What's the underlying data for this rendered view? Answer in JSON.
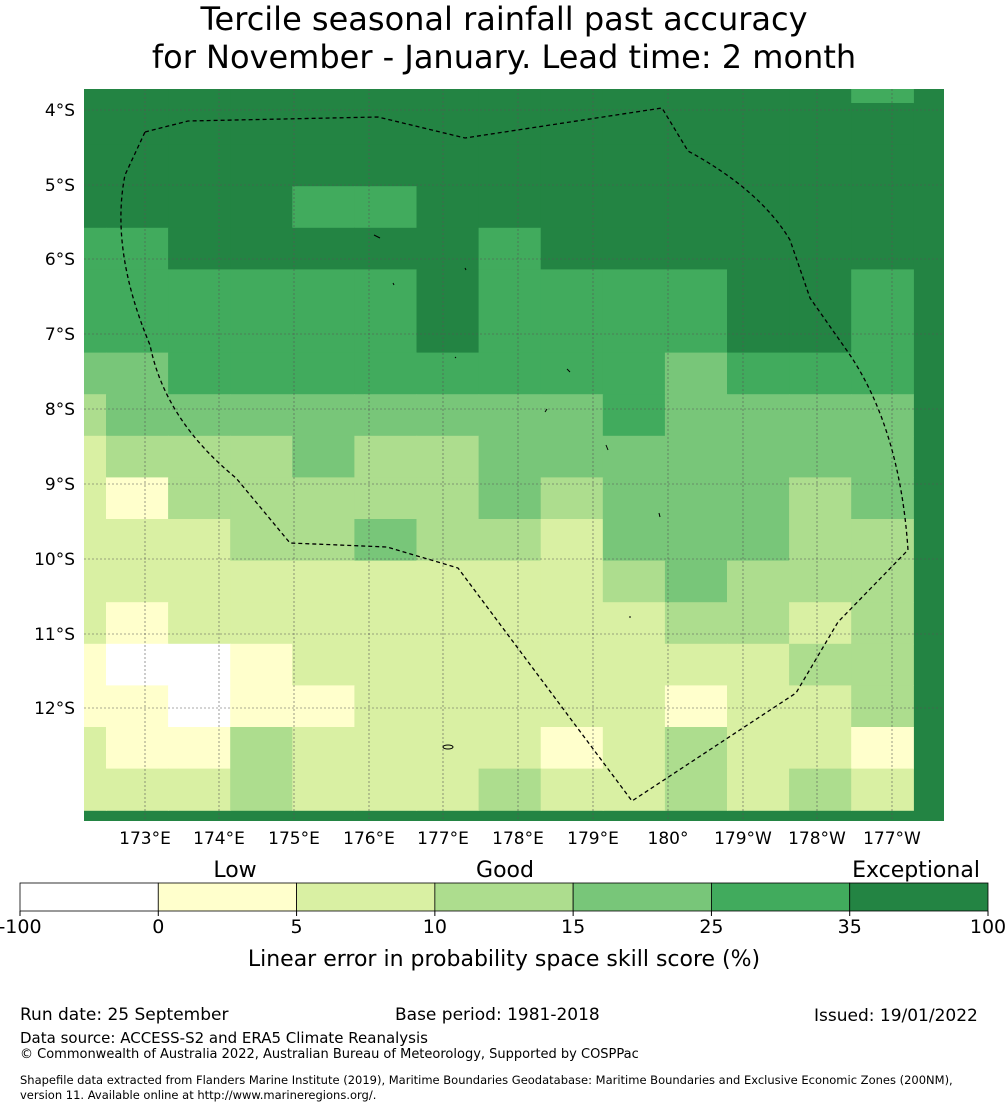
{
  "title_line1": "Tercile seasonal rainfall past accuracy",
  "title_line2": "for November - January. Lead time: 2 month",
  "map": {
    "lat_labels": [
      "4°S",
      "5°S",
      "6°S",
      "7°S",
      "8°S",
      "9°S",
      "10°S",
      "11°S",
      "12°S"
    ],
    "lon_labels": [
      "173°E",
      "174°E",
      "175°E",
      "176°E",
      "177°E",
      "178°E",
      "179°E",
      "180°",
      "179°W",
      "178°W",
      "177°W"
    ],
    "grid_legend_levels": "rows 0-17 cols 0-13; values are class indices 0..6 from colorbar (0:-100..0, 1:0..5, 2:5..10, 3:10..15, 4:15..25, 5:25..35, 6:35..100)",
    "grid": [
      [
        6,
        6,
        6,
        6,
        6,
        6,
        6,
        6,
        6,
        6,
        6,
        6,
        6,
        5
      ],
      [
        6,
        6,
        6,
        6,
        6,
        6,
        6,
        6,
        6,
        6,
        6,
        6,
        6,
        6
      ],
      [
        6,
        6,
        6,
        6,
        6,
        6,
        6,
        6,
        6,
        6,
        6,
        6,
        6,
        6
      ],
      [
        6,
        6,
        6,
        6,
        5,
        5,
        6,
        6,
        6,
        6,
        6,
        6,
        6,
        6
      ],
      [
        5,
        5,
        6,
        6,
        6,
        6,
        6,
        5,
        6,
        6,
        6,
        6,
        6,
        6
      ],
      [
        5,
        5,
        5,
        5,
        5,
        5,
        6,
        5,
        5,
        5,
        5,
        6,
        6,
        5
      ],
      [
        5,
        5,
        5,
        5,
        5,
        5,
        6,
        5,
        5,
        5,
        5,
        6,
        6,
        5
      ],
      [
        4,
        4,
        5,
        5,
        5,
        5,
        5,
        5,
        5,
        5,
        4,
        5,
        5,
        5
      ],
      [
        3,
        4,
        4,
        4,
        4,
        4,
        4,
        4,
        4,
        5,
        4,
        4,
        4,
        4
      ],
      [
        2,
        3,
        3,
        3,
        4,
        3,
        3,
        4,
        4,
        4,
        4,
        4,
        4,
        4
      ],
      [
        2,
        1,
        3,
        3,
        3,
        3,
        3,
        4,
        3,
        4,
        4,
        4,
        3,
        4
      ],
      [
        2,
        2,
        2,
        3,
        3,
        4,
        3,
        3,
        2,
        4,
        4,
        4,
        3,
        3
      ],
      [
        2,
        2,
        2,
        2,
        2,
        2,
        2,
        2,
        2,
        3,
        4,
        3,
        3,
        3
      ],
      [
        2,
        1,
        2,
        2,
        2,
        2,
        2,
        2,
        2,
        2,
        3,
        3,
        2,
        3
      ],
      [
        1,
        0,
        0,
        1,
        2,
        2,
        2,
        2,
        2,
        2,
        2,
        2,
        3,
        3
      ],
      [
        1,
        1,
        0,
        1,
        1,
        2,
        2,
        2,
        2,
        2,
        1,
        2,
        2,
        3
      ],
      [
        2,
        1,
        1,
        3,
        2,
        2,
        2,
        2,
        1,
        2,
        3,
        2,
        2,
        1
      ],
      [
        2,
        2,
        2,
        3,
        2,
        2,
        2,
        3,
        2,
        2,
        3,
        2,
        3,
        2
      ]
    ],
    "colors": [
      "#ffffff",
      "#ffffcc",
      "#d9f0a3",
      "#addd8e",
      "#78c679",
      "#41ab5d",
      "#238443"
    ]
  },
  "colorbar": {
    "category_labels": [
      "Low",
      "Good",
      "Exceptional"
    ],
    "ticks": [
      "-100",
      "0",
      "5",
      "10",
      "15",
      "25",
      "35",
      "100"
    ],
    "label": "Linear error in probability space skill score (%)"
  },
  "footer": {
    "run_date": "Run date: 25 September",
    "base_period": "Base period: 1981-2018",
    "issued": "Issued: 19/01/2022",
    "data_source": "Data source: ACCESS-S2 and ERA5 Climate Reanalysis",
    "copyright": "© Commonwealth of Australia 2022, Australian Bureau of Meteorology, Supported by COSPPac",
    "shapefile_line1": "Shapefile data extracted from Flanders Marine Institute (2019), Maritime Boundaries Geodatabase: Maritime Boundaries and Exclusive Economic Zones (200NM),",
    "shapefile_line2": "version 11. Available online at http://www.marineregions.org/."
  }
}
